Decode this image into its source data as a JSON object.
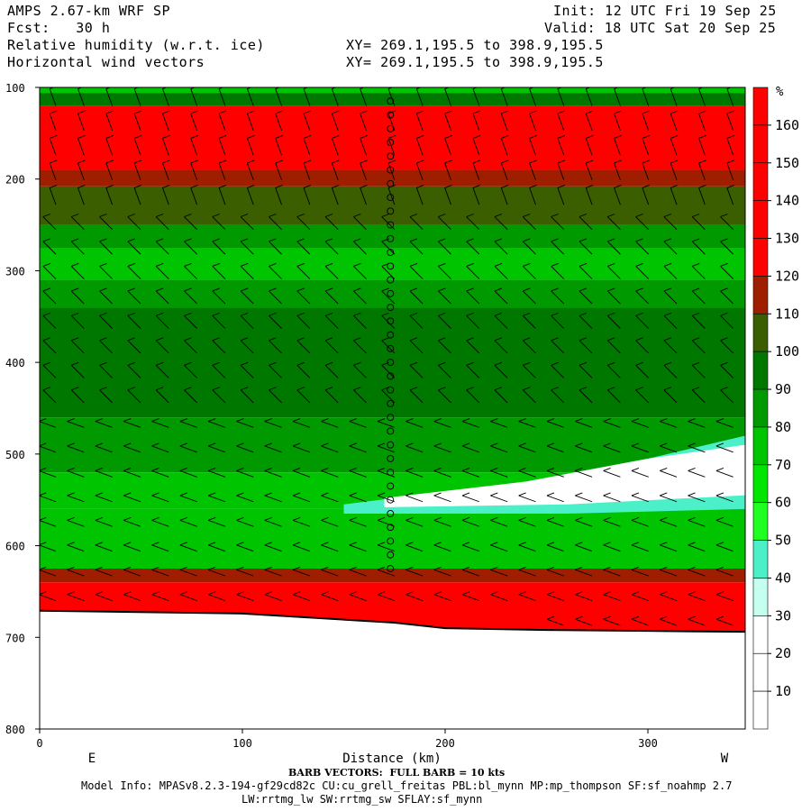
{
  "header": {
    "title": "AMPS 2.67-km WRF SP",
    "forecast": "Fcst:   30 h",
    "field1": "Relative humidity (w.r.t. ice)",
    "field2": "Horizontal wind vectors",
    "init": "Init: 12 UTC Fri 19 Sep 25",
    "valid": "Valid: 18 UTC Sat 20 Sep 25",
    "xy1": "XY= 269.1,195.5 to 398.9,195.5",
    "xy2": "XY= 269.1,195.5 to 398.9,195.5"
  },
  "footer": {
    "barb_note": "BARB VECTORS:  FULL BARB = 10 kts",
    "model_info": "Model Info: MPASv8.2.3-194-gf29cd82c CU:cu_grell_freitas PBL:bl_mynn MP:mp_thompson SF:sf_noahmp 2.7",
    "model_info2": "LW:rrtmg_lw SW:rrtmg_sw SFLAY:sf_mynn"
  },
  "chart_data": {
    "type": "heatmap",
    "title": "Relative humidity (w.r.t. ice)",
    "xlabel": "Distance (km)",
    "ylabel": "",
    "x_ticks": [
      0,
      100,
      200,
      300
    ],
    "y_ticks": [
      100,
      200,
      300,
      400,
      500,
      600,
      700,
      800
    ],
    "xlim": [
      0,
      348
    ],
    "ylim": [
      800,
      100
    ],
    "x_end_labels": {
      "left": "E",
      "right": "W"
    },
    "colorbar": {
      "unit": "%",
      "levels": [
        10,
        20,
        30,
        40,
        50,
        60,
        70,
        80,
        90,
        100,
        110,
        120,
        130,
        140,
        150,
        160
      ],
      "colors": [
        "#ffffff",
        "#ffffff",
        "#ffffff",
        "#c4fff0",
        "#4cf0c8",
        "#20ff20",
        "#00e600",
        "#00c400",
        "#009a00",
        "#007800",
        "#3b5e00",
        "#a01e00",
        "#ff0000",
        "#ff0000",
        "#ff0000",
        "#ff0000",
        "#ff0000"
      ]
    },
    "terrain": [
      [
        0,
        671
      ],
      [
        100,
        674
      ],
      [
        175,
        684
      ],
      [
        200,
        690
      ],
      [
        250,
        692
      ],
      [
        300,
        693
      ],
      [
        348,
        694
      ]
    ],
    "rh_layers": [
      {
        "top_hpa": 100,
        "bottom_hpa": 106,
        "rh": 75
      },
      {
        "top_hpa": 106,
        "bottom_hpa": 120,
        "rh": 95
      },
      {
        "top_hpa": 120,
        "bottom_hpa": 130,
        "rh": 125
      },
      {
        "top_hpa": 130,
        "bottom_hpa": 190,
        "rh": 160
      },
      {
        "top_hpa": 190,
        "bottom_hpa": 208,
        "rh": 115
      },
      {
        "top_hpa": 208,
        "bottom_hpa": 250,
        "rh": 100
      },
      {
        "top_hpa": 250,
        "bottom_hpa": 275,
        "rh": 85
      },
      {
        "top_hpa": 275,
        "bottom_hpa": 310,
        "rh": 75
      },
      {
        "top_hpa": 310,
        "bottom_hpa": 340,
        "rh": 85
      },
      {
        "top_hpa": 340,
        "bottom_hpa": 460,
        "rh": 95
      },
      {
        "top_hpa": 460,
        "bottom_hpa": 520,
        "rh": 85
      },
      {
        "top_hpa": 520,
        "bottom_hpa": 560,
        "rh": 75
      },
      {
        "top_hpa": 560,
        "bottom_hpa": 625,
        "rh": 75
      },
      {
        "top_hpa": 625,
        "bottom_hpa": 640,
        "rh": 115
      },
      {
        "top_hpa": 640,
        "bottom_hpa": 700,
        "rh": 160
      }
    ],
    "dry_tongue": {
      "rh": 25,
      "x_range": [
        150,
        348
      ],
      "pressure_range": [
        480,
        560
      ]
    }
  }
}
